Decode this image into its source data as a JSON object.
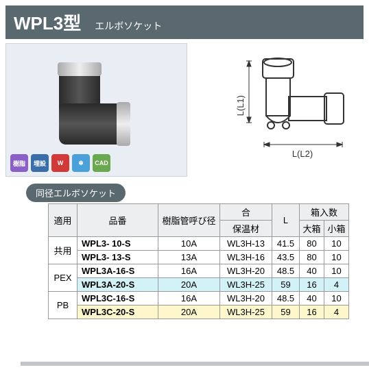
{
  "header": {
    "model": "WPL3型",
    "desc": "エルボソケット"
  },
  "badges": [
    {
      "label": "樹脂",
      "bg": "#8a5fc7"
    },
    {
      "label": "埋設",
      "bg": "#3a6ea8"
    },
    {
      "label": "W",
      "bg": "#d23a3a"
    },
    {
      "label": "❄",
      "bg": "#4aa0d8"
    },
    {
      "label": "CAD",
      "bg": "#6aa84f"
    }
  ],
  "diagram": {
    "l1": "L(L1)",
    "l2": "L(L2)"
  },
  "tab_label": "同径エルボソケット",
  "table": {
    "columns": {
      "app": "適用",
      "partnum": "品番",
      "nominal": "樹脂管呼び径",
      "insul_group": "合",
      "insul": "保温材",
      "L": "L",
      "box_group": "箱入数",
      "box_big": "大箱",
      "box_small": "小箱"
    },
    "rows": [
      {
        "app": "共用",
        "partnum": "WPL3-  10-S",
        "nominal": "10A",
        "insul": "WL3H-13",
        "L": "41.5",
        "big": "80",
        "small": "10",
        "rowspan_app": 2
      },
      {
        "partnum": "WPL3-  13-S",
        "nominal": "13A",
        "insul": "WL3H-16",
        "L": "43.5",
        "big": "80",
        "small": "10"
      },
      {
        "app": "PEX",
        "partnum": "WPL3A-16-S",
        "nominal": "16A",
        "insul": "WL3H-20",
        "L": "48.5",
        "big": "40",
        "small": "10",
        "rowspan_app": 2,
        "appcls": "pex"
      },
      {
        "partnum": "WPL3A-20-S",
        "nominal": "20A",
        "insul": "WL3H-25",
        "L": "59",
        "big": "16",
        "small": "4",
        "hl": "hl"
      },
      {
        "app": "PB",
        "partnum": "WPL3C-16-S",
        "nominal": "16A",
        "insul": "WL3H-20",
        "L": "48.5",
        "big": "40",
        "small": "10",
        "rowspan_app": 2,
        "appcls": "pb"
      },
      {
        "partnum": "WPL3C-20-S",
        "nominal": "20A",
        "insul": "WL3H-25",
        "L": "59",
        "big": "16",
        "small": "4",
        "hl": "hl2"
      }
    ]
  },
  "colors": {
    "header_bg": "#5a6870",
    "highlight_blue": "#d3f2f7",
    "highlight_yellow": "#fff7cc"
  }
}
